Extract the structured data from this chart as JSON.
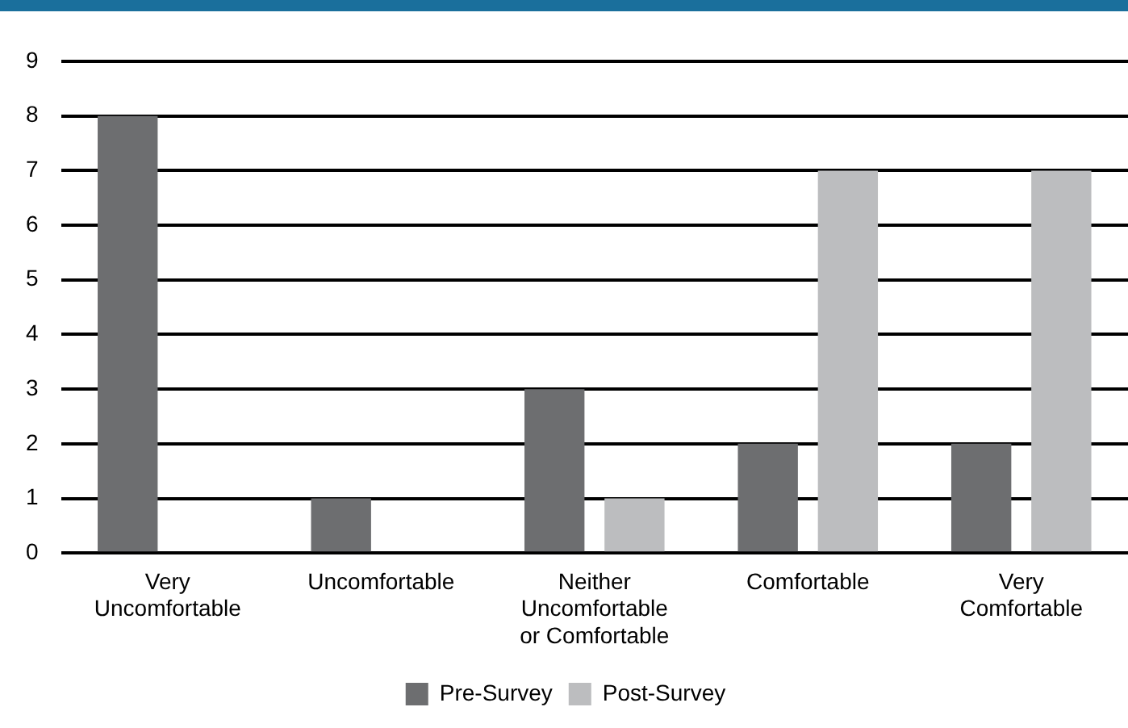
{
  "chart_data": {
    "type": "bar",
    "categories": [
      "Very Uncomfortable",
      "Uncomfortable",
      "Neither Uncomfortable or Comfortable",
      "Comfortable",
      "Very Comfortable"
    ],
    "series": [
      {
        "name": "Pre-Survey",
        "color": "#6d6e70",
        "values": [
          8,
          1,
          3,
          2,
          2
        ]
      },
      {
        "name": "Post-Survey",
        "color": "#bcbdbf",
        "values": [
          0,
          0,
          1,
          7,
          7
        ]
      }
    ],
    "ylim": [
      0,
      9
    ],
    "yticks": [
      0,
      1,
      2,
      3,
      4,
      5,
      6,
      7,
      8,
      9
    ],
    "grid": "y",
    "legend": "bottom"
  }
}
